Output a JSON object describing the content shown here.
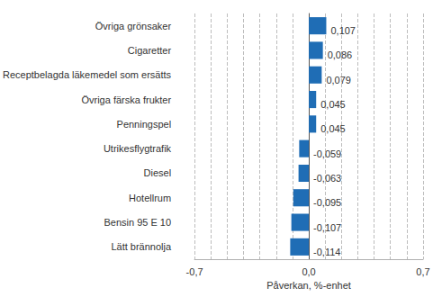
{
  "chart_data": {
    "type": "bar",
    "orientation": "horizontal",
    "categories": [
      "Övriga grönsaker",
      "Cigaretter",
      "Receptbelagda läkemedel som ersätts",
      "Övriga färska frukter",
      "Penningspel",
      "Utrikesflygtrafik",
      "Diesel",
      "Hotellrum",
      "Bensin 95 E 10",
      "Lätt brännolja"
    ],
    "values": [
      0.107,
      0.086,
      0.079,
      0.045,
      0.045,
      -0.059,
      -0.063,
      -0.095,
      -0.107,
      -0.114
    ],
    "value_labels": [
      "0,107",
      "0,086",
      "0,079",
      "0,045",
      "0,045",
      "-0,059",
      "-0,063",
      "-0,095",
      "-0,107",
      "-0,114"
    ],
    "color": "#1f6db5",
    "x_label": "Påverkan, %-enhet",
    "xlim": [
      -0.7,
      0.7
    ],
    "xticks": [
      {
        "value": -0.7,
        "label": "-0,7"
      },
      {
        "value": 0,
        "label": "0,0"
      },
      {
        "value": 0.7,
        "label": "0,7"
      }
    ],
    "grid": true,
    "data_labels": true
  }
}
